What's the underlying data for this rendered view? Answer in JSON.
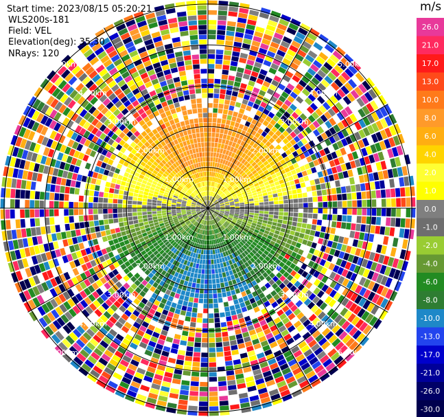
{
  "header": {
    "start_time": "Start time: 2023/08/15 05:20:21",
    "instrument": "WLS200s-181",
    "field": "Field: VEL",
    "elevation": "Elevation(deg): 35.30",
    "nrays": "NRays: 120"
  },
  "colorbar": {
    "unit": "m/s",
    "levels": [
      {
        "label": "26.0",
        "color": "#e8399a"
      },
      {
        "label": "21.0",
        "color": "#ff2a5f"
      },
      {
        "label": "17.0",
        "color": "#ff1a1a"
      },
      {
        "label": "13.0",
        "color": "#ff4a1a"
      },
      {
        "label": "10.0",
        "color": "#ff7a1a"
      },
      {
        "label": "8.0",
        "color": "#ff9a2a"
      },
      {
        "label": "6.0",
        "color": "#ffae12"
      },
      {
        "label": "4.0",
        "color": "#ffd400"
      },
      {
        "label": "2.0",
        "color": "#ffff33"
      },
      {
        "label": "1.0",
        "color": "#ffff00"
      },
      {
        "label": "0.0",
        "color": "#7f7f7f"
      },
      {
        "label": "-1.0",
        "color": "#6e6e6e"
      },
      {
        "label": "-2.0",
        "color": "#99cc33"
      },
      {
        "label": "-4.0",
        "color": "#669933"
      },
      {
        "label": "-6.0",
        "color": "#228b22"
      },
      {
        "label": "-8.0",
        "color": "#2e7d32"
      },
      {
        "label": "-10.0",
        "color": "#1e88c8"
      },
      {
        "label": "-13.0",
        "color": "#2244ee"
      },
      {
        "label": "-17.0",
        "color": "#0000cc"
      },
      {
        "label": "-21.0",
        "color": "#000099"
      },
      {
        "label": "-26.0",
        "color": "#000066"
      },
      {
        "label": "-30.0",
        "color": "#00004d"
      }
    ]
  },
  "chart_data": {
    "type": "heatmap",
    "subtype": "lidar PPI (plan position indicator)",
    "field": "VEL",
    "unit": "m/s",
    "range_rings_km": [
      1.0,
      2.0,
      3.0,
      4.0,
      5.0
    ],
    "range_ring_labels": [
      "1.00km",
      "2.00km",
      "3.00km",
      "4.00km",
      "5.00km"
    ],
    "spoke_angles_deg": [
      0,
      30,
      60,
      90,
      120,
      150,
      180,
      210,
      240,
      270,
      300,
      330
    ],
    "max_range_km": 5.1,
    "pattern_description": {
      "north_sector_0_to_1_5km": "positive 2 to 13 m/s (yellow/orange/red)",
      "south_sector_0_to_1_5km": "negative -2 to -10 m/s (greens)",
      "east_west_band": "near 0 m/s (grey)",
      "beyond_2_5km": "noise"
    }
  }
}
